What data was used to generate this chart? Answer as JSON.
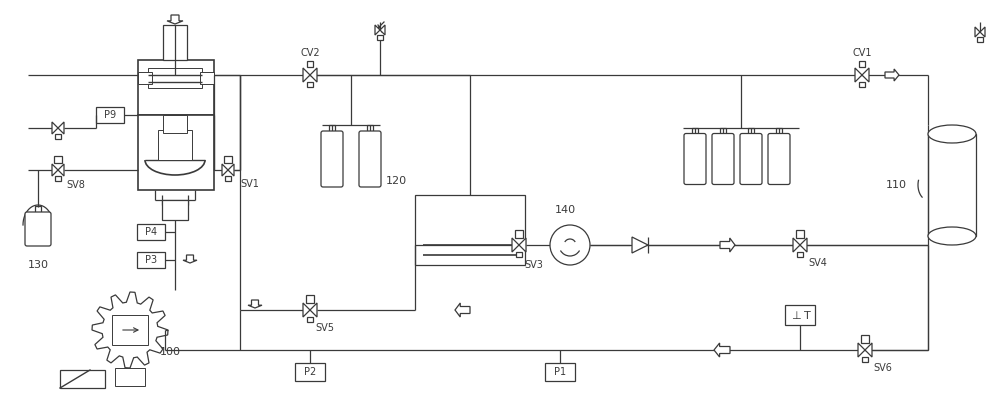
{
  "bg_color": "#ffffff",
  "line_color": "#3a3a3a",
  "figsize": [
    10.0,
    3.99
  ],
  "dpi": 100,
  "xlim": [
    0,
    1000
  ],
  "ylim": [
    0,
    399
  ]
}
